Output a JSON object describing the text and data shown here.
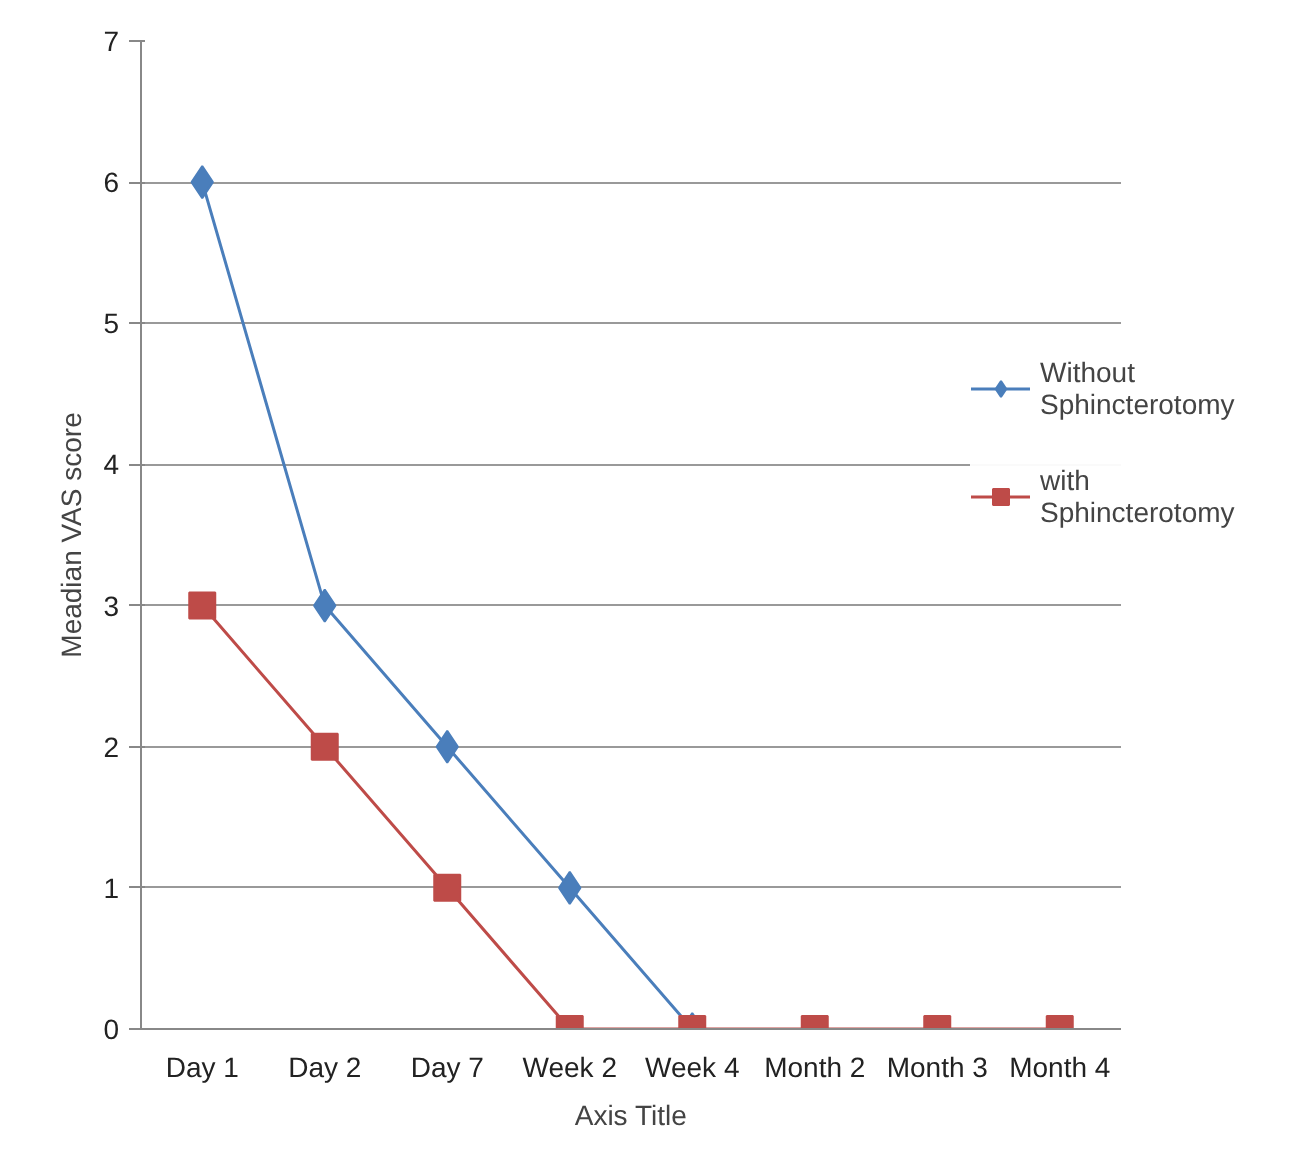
{
  "chart_data": {
    "type": "line",
    "xlabel": "Axis Title",
    "ylabel": "Meadian VAS score",
    "categories": [
      "Day 1",
      "Day 2",
      "Day 7",
      "Week 2",
      "Week 4",
      "Month 2",
      "Month 3",
      "Month 4"
    ],
    "series": [
      {
        "name": "Without Sphincterotomy",
        "color": "#4a7ebb",
        "marker": "diamond",
        "values": [
          6,
          3,
          2,
          1,
          0,
          null,
          null,
          null
        ]
      },
      {
        "name": "with Sphincterotomy",
        "color": "#be4b48",
        "marker": "square",
        "values": [
          3,
          2,
          1,
          0,
          0,
          0,
          0,
          0
        ]
      }
    ],
    "ylim": [
      0,
      7
    ],
    "yticks": [
      0,
      1,
      2,
      3,
      4,
      5,
      6,
      7
    ],
    "grid": "y",
    "legend": "right",
    "line_style": "solid"
  }
}
